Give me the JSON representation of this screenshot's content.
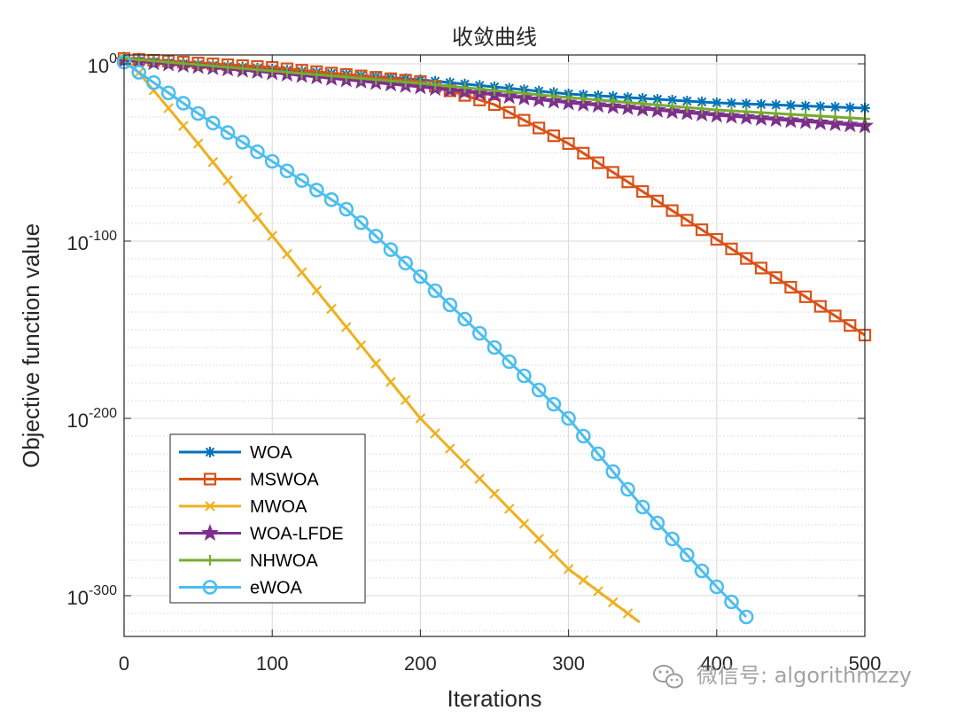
{
  "chart_data": {
    "type": "line",
    "title": "收敛曲线",
    "xlabel": "Iterations",
    "ylabel": "Objective function value",
    "yscale": "log",
    "xlim": [
      0,
      500
    ],
    "ylim_exponent": [
      -323,
      5
    ],
    "grid": true,
    "x_ticks": [
      0,
      100,
      200,
      300,
      400,
      500
    ],
    "y_ticks": [
      {
        "base": "10",
        "exp": "0",
        "value_exp": 0
      },
      {
        "base": "10",
        "exp": "-100",
        "value_exp": -100
      },
      {
        "base": "10",
        "exp": "-200",
        "value_exp": -200
      },
      {
        "base": "10",
        "exp": "-300",
        "value_exp": -300
      }
    ],
    "legend_position": "bottom-left",
    "series": [
      {
        "name": "WOA",
        "color": "#0072BD",
        "marker": "asterisk",
        "x": [
          0,
          100,
          200,
          300,
          400,
          500
        ],
        "log10_y": [
          2,
          -3,
          -9,
          -17,
          -22,
          -25
        ]
      },
      {
        "name": "MSWOA",
        "color": "#D95319",
        "marker": "square",
        "x": [
          0,
          100,
          200,
          250,
          300,
          350,
          400,
          450,
          500
        ],
        "log10_y": [
          3,
          -2,
          -10,
          -23,
          -45,
          -72,
          -99,
          -126,
          -153
        ]
      },
      {
        "name": "MWOA",
        "color": "#EDB120",
        "marker": "x",
        "x": [
          0,
          10,
          50,
          100,
          200,
          300,
          348
        ],
        "log10_y": [
          3,
          -5,
          -45,
          -97,
          -200,
          -285,
          -315
        ]
      },
      {
        "name": "WOA-LFDE",
        "color": "#7E2F8E",
        "marker": "pentagram",
        "x": [
          0,
          100,
          200,
          300,
          400,
          500
        ],
        "log10_y": [
          2,
          -5,
          -13,
          -22,
          -29,
          -35
        ]
      },
      {
        "name": "NHWOA",
        "color": "#77AC30",
        "marker": "plus",
        "x": [
          0,
          100,
          200,
          300,
          400,
          500
        ],
        "log10_y": [
          3,
          -4,
          -11,
          -19,
          -26,
          -31
        ]
      },
      {
        "name": "eWOA",
        "color": "#4DBEEE",
        "marker": "circle",
        "x": [
          0,
          50,
          100,
          150,
          200,
          250,
          300,
          350,
          400,
          420
        ],
        "log10_y": [
          1,
          -28,
          -55,
          -82,
          -120,
          -160,
          -200,
          -250,
          -295,
          -312
        ]
      }
    ]
  },
  "watermark": {
    "icon": "wechat-icon",
    "text": "微信号: algorithmzzy"
  }
}
